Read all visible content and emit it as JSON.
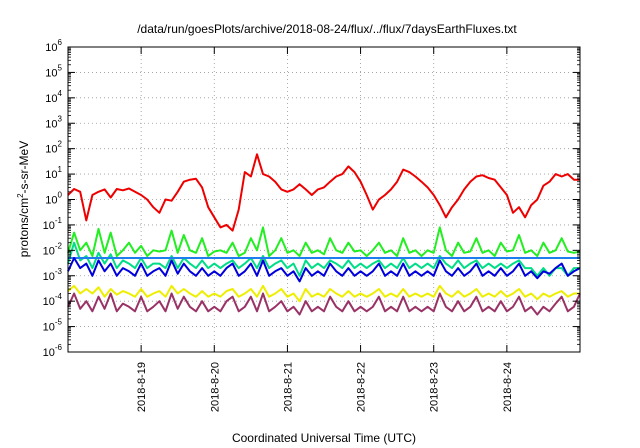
{
  "chart_data": {
    "type": "line",
    "title": "/data/run/goesPlots/archive/2018-08-24/flux/../flux/7daysEarthFluxes.txt",
    "xlabel": "Coordinated Universal Time (UTC)",
    "ylabel_base": "protons/cm",
    "ylabel_sup": "2",
    "ylabel_rest": "-s-sr-MeV",
    "y_scale": "log",
    "ylim": [
      1e-06,
      1000000.0
    ],
    "xlim": [
      0,
      168
    ],
    "grid": true,
    "legend": "none",
    "y_ticks": [
      {
        "exp": -6,
        "base": "10",
        "sup": "-6"
      },
      {
        "exp": -5,
        "base": "10",
        "sup": "-5"
      },
      {
        "exp": -4,
        "base": "10",
        "sup": "-4"
      },
      {
        "exp": -3,
        "base": "10",
        "sup": "-3"
      },
      {
        "exp": -2,
        "base": "10",
        "sup": "-2"
      },
      {
        "exp": -1,
        "base": "10",
        "sup": "-1"
      },
      {
        "exp": 0,
        "base": "10",
        "sup": "0"
      },
      {
        "exp": 1,
        "base": "10",
        "sup": "1"
      },
      {
        "exp": 2,
        "base": "10",
        "sup": "2"
      },
      {
        "exp": 3,
        "base": "10",
        "sup": "3"
      },
      {
        "exp": 4,
        "base": "10",
        "sup": "4"
      },
      {
        "exp": 5,
        "base": "10",
        "sup": "5"
      },
      {
        "exp": 6,
        "base": "10",
        "sup": "6"
      }
    ],
    "x_ticks": [
      {
        "label": "2018-8-19",
        "x": 24
      },
      {
        "label": "2018-8-20",
        "x": 48
      },
      {
        "label": "2018-8-21",
        "x": 72
      },
      {
        "label": "2018-8-22",
        "x": 96
      },
      {
        "label": "2018-8-23",
        "x": 120
      },
      {
        "label": "2018-8-24",
        "x": 144
      }
    ],
    "series": [
      {
        "color": "#ee0000",
        "x": [
          0,
          2,
          4,
          6,
          8,
          10,
          12,
          14,
          16,
          18,
          20,
          22,
          24,
          26,
          28,
          30,
          32,
          34,
          36,
          38,
          40,
          42,
          44,
          46,
          48,
          50,
          52,
          54,
          56,
          58,
          60,
          62,
          64,
          66,
          68,
          70,
          72,
          74,
          76,
          78,
          80,
          82,
          84,
          86,
          88,
          90,
          92,
          94,
          96,
          98,
          100,
          102,
          104,
          106,
          108,
          110,
          112,
          114,
          116,
          118,
          120,
          122,
          124,
          126,
          128,
          130,
          132,
          134,
          136,
          138,
          140,
          142,
          144,
          146,
          148,
          150,
          152,
          154,
          156,
          158,
          160,
          162,
          164,
          166,
          168
        ],
        "values": [
          1.5,
          2.6,
          2.0,
          0.15,
          1.5,
          2.0,
          2.5,
          1.2,
          2.6,
          2.3,
          2.7,
          2.0,
          1.5,
          1.0,
          0.5,
          0.3,
          1.0,
          0.9,
          2.0,
          5.0,
          6.0,
          6.5,
          3.0,
          0.5,
          0.2,
          0.08,
          0.1,
          0.06,
          0.4,
          12,
          8,
          60,
          10,
          8,
          5,
          2.5,
          2.0,
          2.5,
          4,
          2.5,
          1.5,
          2.5,
          3.0,
          5.0,
          8,
          10,
          20,
          12,
          5,
          1.5,
          0.4,
          1.0,
          1.5,
          2.5,
          5,
          15,
          12,
          8,
          5,
          3,
          1.5,
          0.6,
          0.2,
          0.5,
          1.0,
          2.5,
          5,
          8,
          9,
          7,
          6,
          3,
          1.5,
          0.3,
          0.5,
          0.2,
          0.6,
          1.0,
          3.5,
          5,
          10,
          8,
          10,
          6,
          6
        ]
      },
      {
        "color": "#22ee22",
        "x": [
          0,
          2,
          4,
          6,
          8,
          10,
          12,
          14,
          16,
          18,
          20,
          22,
          24,
          26,
          28,
          30,
          32,
          34,
          36,
          38,
          40,
          42,
          44,
          46,
          48,
          50,
          52,
          54,
          56,
          58,
          60,
          62,
          64,
          66,
          68,
          70,
          72,
          74,
          76,
          78,
          80,
          82,
          84,
          86,
          88,
          90,
          92,
          94,
          96,
          98,
          100,
          102,
          104,
          106,
          108,
          110,
          112,
          114,
          116,
          118,
          120,
          122,
          124,
          126,
          128,
          130,
          132,
          134,
          136,
          138,
          140,
          142,
          144,
          146,
          148,
          150,
          152,
          154,
          156,
          158,
          160,
          162,
          164,
          166,
          168
        ],
        "values": [
          0.008,
          0.05,
          0.01,
          0.02,
          0.006,
          0.07,
          0.008,
          0.05,
          0.006,
          0.01,
          0.02,
          0.008,
          0.015,
          0.006,
          0.01,
          0.009,
          0.01,
          0.06,
          0.008,
          0.04,
          0.01,
          0.008,
          0.03,
          0.006,
          0.009,
          0.01,
          0.008,
          0.02,
          0.006,
          0.008,
          0.03,
          0.01,
          0.08,
          0.006,
          0.01,
          0.03,
          0.008,
          0.01,
          0.006,
          0.02,
          0.008,
          0.01,
          0.007,
          0.03,
          0.01,
          0.008,
          0.02,
          0.009,
          0.01,
          0.006,
          0.01,
          0.02,
          0.008,
          0.01,
          0.006,
          0.03,
          0.008,
          0.01,
          0.006,
          0.01,
          0.008,
          0.08,
          0.01,
          0.006,
          0.02,
          0.008,
          0.009,
          0.03,
          0.008,
          0.01,
          0.006,
          0.02,
          0.009,
          0.01,
          0.04,
          0.008,
          0.01,
          0.006,
          0.02,
          0.008,
          0.01,
          0.03,
          0.009,
          0.008,
          0.009
        ]
      },
      {
        "color": "#00dd88",
        "x": [
          0,
          2,
          4,
          6,
          8,
          10,
          12,
          14,
          16,
          18,
          20,
          22,
          24,
          26,
          28,
          30,
          32,
          34,
          36,
          38,
          40,
          42,
          44,
          46,
          48,
          50,
          52,
          54,
          56,
          58,
          60,
          62,
          64,
          66,
          68,
          70,
          72,
          74,
          76,
          78,
          80,
          82,
          84,
          86,
          88,
          90,
          92,
          94,
          96,
          98,
          100,
          102,
          104,
          106,
          108,
          110,
          112,
          114,
          116,
          118,
          120,
          122,
          124,
          126,
          128,
          130,
          132,
          134,
          136,
          138,
          140,
          142,
          144,
          146,
          148,
          150,
          152,
          154,
          156,
          158,
          160,
          162,
          164,
          166,
          168
        ],
        "values": [
          0.003,
          0.02,
          0.004,
          0.006,
          0.002,
          0.008,
          0.003,
          0.007,
          0.002,
          0.004,
          0.003,
          0.002,
          0.005,
          0.002,
          0.003,
          0.003,
          0.002,
          0.006,
          0.002,
          0.005,
          0.003,
          0.002,
          0.004,
          0.002,
          0.003,
          0.002,
          0.003,
          0.004,
          0.002,
          0.003,
          0.005,
          0.002,
          0.006,
          0.002,
          0.003,
          0.004,
          0.002,
          0.003,
          0.001,
          0.004,
          0.002,
          0.003,
          0.002,
          0.004,
          0.003,
          0.002,
          0.004,
          0.002,
          0.003,
          0.002,
          0.003,
          0.004,
          0.002,
          0.003,
          0.002,
          0.005,
          0.002,
          0.003,
          0.002,
          0.003,
          0.002,
          0.006,
          0.003,
          0.002,
          0.004,
          0.002,
          0.003,
          0.004,
          0.002,
          0.003,
          0.002,
          0.003,
          0.002,
          0.003,
          0.004,
          0.002,
          0.002,
          0.001,
          0.002,
          0.001,
          0.002,
          0.002,
          0.001,
          0.002,
          0.002
        ]
      },
      {
        "color": "#1e7cee",
        "x": [
          0,
          168
        ],
        "values": [
          0.005,
          0.005
        ]
      },
      {
        "color": "#0000dd",
        "x": [
          0,
          2,
          4,
          6,
          8,
          10,
          12,
          14,
          16,
          18,
          20,
          22,
          24,
          26,
          28,
          30,
          32,
          34,
          36,
          38,
          40,
          42,
          44,
          46,
          48,
          50,
          52,
          54,
          56,
          58,
          60,
          62,
          64,
          66,
          68,
          70,
          72,
          74,
          76,
          78,
          80,
          82,
          84,
          86,
          88,
          90,
          92,
          94,
          96,
          98,
          100,
          102,
          104,
          106,
          108,
          110,
          112,
          114,
          116,
          118,
          120,
          122,
          124,
          126,
          128,
          130,
          132,
          134,
          136,
          138,
          140,
          142,
          144,
          146,
          148,
          150,
          152,
          154,
          156,
          158,
          160,
          162,
          164,
          166,
          168
        ],
        "values": [
          0.0015,
          0.005,
          0.002,
          0.003,
          0.001,
          0.004,
          0.0015,
          0.003,
          0.001,
          0.002,
          0.0015,
          0.001,
          0.003,
          0.001,
          0.0015,
          0.002,
          0.001,
          0.004,
          0.0012,
          0.003,
          0.0015,
          0.001,
          0.002,
          0.001,
          0.0015,
          0.001,
          0.002,
          0.003,
          0.001,
          0.0015,
          0.003,
          0.001,
          0.004,
          0.001,
          0.0015,
          0.002,
          0.001,
          0.0015,
          0.0006,
          0.002,
          0.001,
          0.0015,
          0.001,
          0.003,
          0.0015,
          0.001,
          0.002,
          0.001,
          0.0015,
          0.001,
          0.0015,
          0.003,
          0.001,
          0.0015,
          0.001,
          0.003,
          0.001,
          0.0015,
          0.001,
          0.0015,
          0.001,
          0.004,
          0.0015,
          0.001,
          0.002,
          0.001,
          0.0015,
          0.003,
          0.001,
          0.0015,
          0.001,
          0.002,
          0.001,
          0.0015,
          0.003,
          0.001,
          0.0015,
          0.0008,
          0.0015,
          0.0012,
          0.002,
          0.003,
          0.001,
          0.0015,
          0.002
        ]
      },
      {
        "color": "#eeee00",
        "x": [
          0,
          2,
          4,
          6,
          8,
          10,
          12,
          14,
          16,
          18,
          20,
          22,
          24,
          26,
          28,
          30,
          32,
          34,
          36,
          38,
          40,
          42,
          44,
          46,
          48,
          50,
          52,
          54,
          56,
          58,
          60,
          62,
          64,
          66,
          68,
          70,
          72,
          74,
          76,
          78,
          80,
          82,
          84,
          86,
          88,
          90,
          92,
          94,
          96,
          98,
          100,
          102,
          104,
          106,
          108,
          110,
          112,
          114,
          116,
          118,
          120,
          122,
          124,
          126,
          128,
          130,
          132,
          134,
          136,
          138,
          140,
          142,
          144,
          146,
          148,
          150,
          152,
          154,
          156,
          158,
          160,
          162,
          164,
          166,
          168
        ],
        "values": [
          0.00025,
          0.0004,
          0.0002,
          0.0003,
          0.0002,
          0.00035,
          0.00015,
          0.0003,
          0.00018,
          0.00025,
          0.0002,
          0.00015,
          0.0003,
          0.00015,
          0.0002,
          0.00025,
          0.00015,
          0.0004,
          0.0002,
          0.0003,
          0.0002,
          0.00015,
          0.00025,
          0.00015,
          0.0002,
          0.00015,
          0.00025,
          0.0003,
          0.00015,
          0.0002,
          0.0003,
          0.00015,
          0.0004,
          0.00015,
          0.0002,
          0.0003,
          0.00015,
          0.0002,
          0.0001,
          0.0003,
          0.00015,
          0.0002,
          0.00015,
          0.0003,
          0.0002,
          0.00015,
          0.00025,
          0.00015,
          0.0002,
          0.00015,
          0.0002,
          0.0003,
          0.00015,
          0.0002,
          0.00015,
          0.0003,
          0.00015,
          0.0002,
          0.00015,
          0.0002,
          0.00015,
          0.0004,
          0.0002,
          0.00015,
          0.00025,
          0.00015,
          0.0002,
          0.0003,
          0.00015,
          0.0002,
          0.00015,
          0.00025,
          0.00015,
          0.0002,
          0.0003,
          0.00015,
          0.0002,
          0.00012,
          0.0002,
          0.00015,
          0.0002,
          0.00025,
          0.00015,
          0.0002,
          0.0002
        ]
      },
      {
        "color": "#993366",
        "x": [
          0,
          2,
          4,
          6,
          8,
          10,
          12,
          14,
          16,
          18,
          20,
          22,
          24,
          26,
          28,
          30,
          32,
          34,
          36,
          38,
          40,
          42,
          44,
          46,
          48,
          50,
          52,
          54,
          56,
          58,
          60,
          62,
          64,
          66,
          68,
          70,
          72,
          74,
          76,
          78,
          80,
          82,
          84,
          86,
          88,
          90,
          92,
          94,
          96,
          98,
          100,
          102,
          104,
          106,
          108,
          110,
          112,
          114,
          116,
          118,
          120,
          122,
          124,
          126,
          128,
          130,
          132,
          134,
          136,
          138,
          140,
          142,
          144,
          146,
          148,
          150,
          152,
          154,
          156,
          158,
          160,
          162,
          164,
          166,
          168
        ],
        "values": [
          6e-05,
          0.0002,
          5e-05,
          0.0001,
          4e-05,
          0.00015,
          5e-05,
          0.0002,
          4e-05,
          8e-05,
          6e-05,
          4e-05,
          0.00015,
          4e-05,
          6e-05,
          0.0001,
          4e-05,
          0.0002,
          5e-05,
          0.00015,
          6e-05,
          4e-05,
          0.0001,
          4e-05,
          6e-05,
          4e-05,
          0.0001,
          0.00015,
          4e-05,
          6e-05,
          0.00015,
          4e-05,
          0.0002,
          4e-05,
          6e-05,
          0.0001,
          4e-05,
          6e-05,
          3e-05,
          0.0001,
          4e-05,
          6e-05,
          4e-05,
          0.00015,
          6e-05,
          4e-05,
          0.0001,
          4e-05,
          6e-05,
          4e-05,
          6e-05,
          0.00015,
          4e-05,
          6e-05,
          4e-05,
          0.00015,
          4e-05,
          6e-05,
          4e-05,
          6e-05,
          4e-05,
          0.0002,
          6e-05,
          4e-05,
          0.0001,
          4e-05,
          6e-05,
          0.00015,
          4e-05,
          6e-05,
          4e-05,
          0.0001,
          4e-05,
          6e-05,
          0.00015,
          4e-05,
          6e-05,
          3e-05,
          6e-05,
          4e-05,
          8e-05,
          0.00015,
          4e-05,
          6e-05,
          0.0002
        ]
      }
    ]
  }
}
